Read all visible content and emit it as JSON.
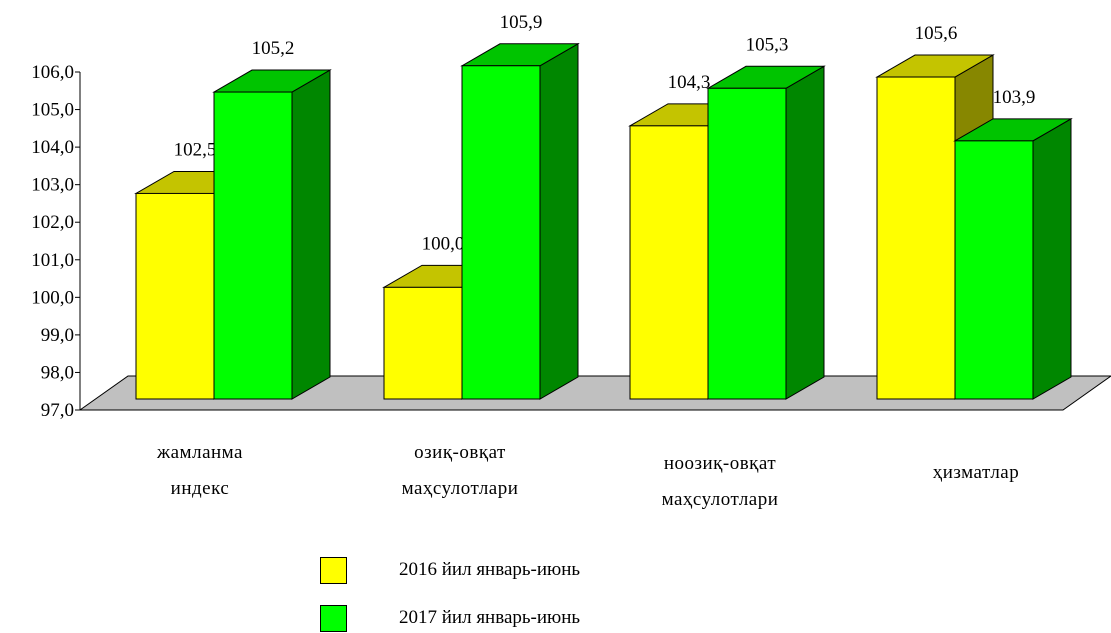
{
  "chart_data": {
    "type": "bar",
    "categories": [
      {
        "line1": "жамланма",
        "line2": "индекс"
      },
      {
        "line1": "озиқ-овқат",
        "line2": "маҳсулотлари"
      },
      {
        "line1": "ноозиқ-овқат",
        "line2": "маҳсулотлари"
      },
      {
        "line1": "ҳизматлар",
        "line2": ""
      }
    ],
    "series": [
      {
        "name": "2016 йил январь-июнь",
        "values": [
          102.5,
          100.0,
          104.3,
          105.6
        ],
        "labels": [
          "102,5",
          "100,0",
          "104,3",
          "105,6"
        ]
      },
      {
        "name": "2017 йил январь-июнь",
        "values": [
          105.2,
          105.9,
          105.3,
          103.9
        ],
        "labels": [
          "105,2",
          "105,9",
          "105,3",
          "103,9"
        ]
      }
    ],
    "ylim": [
      97.0,
      106.0
    ],
    "yticks": [
      "97,0",
      "98,0",
      "99,0",
      "100,0",
      "101,0",
      "102,0",
      "103,0",
      "104,0",
      "105,0",
      "106,0"
    ],
    "style": "3d-clustered-column",
    "grid": false,
    "legend_position": "bottom"
  },
  "colors": {
    "series_2016": {
      "front": "#ffff00",
      "top": "#c4c400",
      "side": "#878700"
    },
    "series_2017": {
      "front": "#00ff00",
      "top": "#00c400",
      "side": "#008700"
    },
    "floor": "#c0c0c0"
  }
}
